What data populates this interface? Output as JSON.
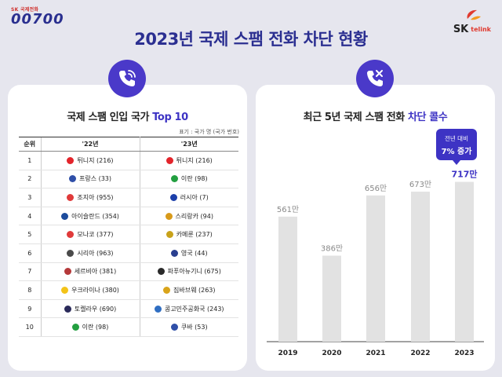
{
  "brand": {
    "small": "SK 국제전화",
    "big": "00700",
    "right_logo": "SK",
    "right_sub": "telink"
  },
  "title": "2023년 국제 스팸 전화 차단 현황",
  "left_card": {
    "icon": "phone-call-icon",
    "title_plain": "국제 스팸 인입 국가 ",
    "title_highlight": "Top 10",
    "note": "표기 : 국가 명 (국가 번호)",
    "headers": [
      "순위",
      "'22년",
      "'23년"
    ],
    "rows": [
      {
        "rank": "1",
        "y22": "튀니지 (216)",
        "y22_flag": "#e3242b",
        "y23": "튀니지 (216)",
        "y23_flag": "#e3242b"
      },
      {
        "rank": "2",
        "y22": "프랑스 (33)",
        "y22_flag": "#2f4fa8",
        "y23": "이란 (98)",
        "y23_flag": "#239f40"
      },
      {
        "rank": "3",
        "y22": "조지아 (955)",
        "y22_flag": "#e03a3a",
        "y23": "러시아 (7)",
        "y23_flag": "#1c3faa"
      },
      {
        "rank": "4",
        "y22": "아이슬란드 (354)",
        "y22_flag": "#1c4b9c",
        "y23": "스리랑카 (94)",
        "y23_flag": "#d89a1a"
      },
      {
        "rank": "5",
        "y22": "모나코 (377)",
        "y22_flag": "#e03a3a",
        "y23": "카메룬 (237)",
        "y23_flag": "#c8a21a"
      },
      {
        "rank": "6",
        "y22": "시리아 (963)",
        "y22_flag": "#4a4a4a",
        "y23": "영국 (44)",
        "y23_flag": "#2a3f8f"
      },
      {
        "rank": "7",
        "y22": "세르비아 (381)",
        "y22_flag": "#b5393a",
        "y23": "파푸아뉴기니 (675)",
        "y23_flag": "#2a2a2a"
      },
      {
        "rank": "8",
        "y22": "우크라이나 (380)",
        "y22_flag": "#f3c318",
        "y23": "짐바브웨 (263)",
        "y23_flag": "#d9a41a"
      },
      {
        "rank": "9",
        "y22": "토켈라우 (690)",
        "y22_flag": "#2a2a5a",
        "y23": "콩고민주공화국 (243)",
        "y23_flag": "#2f6ec2"
      },
      {
        "rank": "10",
        "y22": "이란 (98)",
        "y22_flag": "#239f40",
        "y23": "쿠바 (53)",
        "y23_flag": "#2f4fa8"
      }
    ]
  },
  "right_card": {
    "icon": "phone-block-icon",
    "title_plain": "최근 5년 국제 스팸 전화 ",
    "title_highlight": "차단 콜수",
    "callout_line1": "전년 대비",
    "callout_line2": "7% 증가"
  },
  "chart_data": {
    "type": "bar",
    "categories": [
      "2019",
      "2020",
      "2021",
      "2022",
      "2023"
    ],
    "values": [
      561,
      386,
      656,
      673,
      717
    ],
    "value_labels": [
      "561만",
      "386만",
      "656만",
      "673만",
      "717만"
    ],
    "unit": "만",
    "ylim": [
      0,
      800
    ],
    "highlight_index": 4,
    "bar_color": "#e2e2e2",
    "highlight_label_color": "#3d33c4",
    "label_color": "#888888"
  }
}
